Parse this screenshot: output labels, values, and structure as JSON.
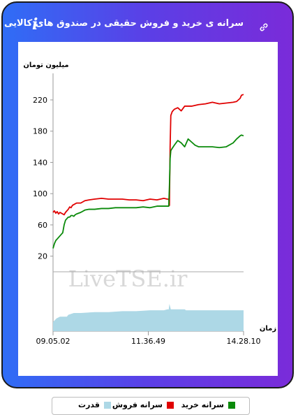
{
  "header": {
    "title": "سرانه ی خرید و فروش حقیقی در صندوق های کالایی",
    "info_glyph": "i"
  },
  "chart_data": {
    "type": "line",
    "ylabel": "میلیون تومان",
    "xlabel": "زمان",
    "yticks": [
      20,
      60,
      100,
      140,
      180,
      220
    ],
    "ylim": [
      0,
      245
    ],
    "x_ticks": [
      "09.05.02",
      "11.36.49",
      "14.28.10"
    ],
    "watermark": "LiveTSE.ir",
    "series": [
      {
        "name": "سرانه فروش",
        "color": "#e00000",
        "x": [
          0,
          2,
          4,
          6,
          8,
          10,
          12,
          14,
          16,
          18,
          20,
          22,
          24,
          26,
          28,
          30,
          34,
          40,
          46,
          52,
          60,
          70,
          80,
          90,
          100,
          110,
          120,
          130,
          140,
          150,
          160,
          165,
          167,
          168,
          169,
          170,
          172,
          175,
          180,
          185,
          190,
          200,
          210,
          220,
          230,
          240,
          250,
          260,
          265,
          270,
          272,
          275
        ],
        "values": [
          76,
          78,
          75,
          77,
          74,
          76,
          75,
          74,
          73,
          76,
          78,
          80,
          83,
          82,
          85,
          86,
          88,
          88,
          91,
          92,
          93,
          94,
          93,
          93,
          93,
          92,
          92,
          91,
          93,
          92,
          94,
          93,
          93,
          85,
          160,
          200,
          205,
          208,
          210,
          206,
          212,
          212,
          214,
          215,
          217,
          215,
          216,
          217,
          218,
          222,
          226,
          227
        ]
      },
      {
        "name": "سرانه خرید",
        "color": "#0a8a0a",
        "x": [
          0,
          2,
          4,
          6,
          8,
          10,
          12,
          14,
          16,
          18,
          20,
          22,
          24,
          26,
          28,
          30,
          32,
          34,
          40,
          46,
          52,
          60,
          70,
          80,
          90,
          100,
          110,
          120,
          130,
          140,
          150,
          160,
          165,
          167,
          168,
          169,
          170,
          172,
          175,
          180,
          185,
          190,
          195,
          200,
          205,
          210,
          220,
          230,
          240,
          250,
          260,
          265,
          270,
          272,
          275
        ],
        "values": [
          30,
          36,
          40,
          42,
          44,
          46,
          48,
          50,
          60,
          66,
          68,
          70,
          70,
          72,
          72,
          71,
          73,
          74,
          76,
          79,
          80,
          80,
          81,
          81,
          82,
          82,
          82,
          82,
          83,
          82,
          84,
          84,
          84,
          84,
          110,
          145,
          155,
          158,
          162,
          168,
          165,
          160,
          170,
          166,
          162,
          160,
          160,
          160,
          159,
          160,
          165,
          170,
          174,
          175,
          174
        ]
      },
      {
        "name": "قدرت",
        "color": "#add8e6",
        "type": "area",
        "x": [
          0,
          5,
          10,
          15,
          20,
          22,
          30,
          40,
          60,
          80,
          100,
          120,
          140,
          160,
          165,
          167,
          168,
          170,
          190,
          192,
          200,
          230,
          260,
          275
        ],
        "values": [
          5,
          7,
          8,
          8,
          8,
          9,
          10,
          10,
          10.5,
          10.5,
          11,
          11,
          11.5,
          11.5,
          12,
          12,
          15,
          12,
          12,
          11.5,
          11.5,
          11.5,
          11.5,
          11.5
        ]
      }
    ],
    "x_tick_positions": [
      0,
      137.5,
      275
    ],
    "y_baseline_line": 0
  }
}
